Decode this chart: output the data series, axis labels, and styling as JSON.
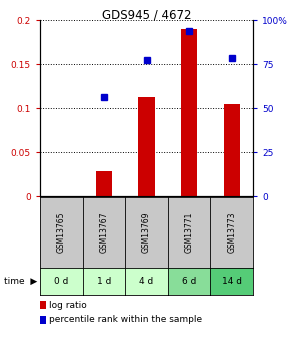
{
  "title": "GDS945 / 4672",
  "categories": [
    "GSM13765",
    "GSM13767",
    "GSM13769",
    "GSM13771",
    "GSM13773"
  ],
  "time_labels": [
    "0 d",
    "1 d",
    "4 d",
    "6 d",
    "14 d"
  ],
  "log_ratio": [
    0.0,
    0.028,
    0.113,
    0.19,
    0.105
  ],
  "percentile_rank": [
    0.0,
    0.565,
    0.775,
    0.935,
    0.785
  ],
  "bar_color": "#cc0000",
  "dot_color": "#0000cc",
  "ylim_left": [
    0,
    0.2
  ],
  "ylim_right": [
    0.0,
    1.0
  ],
  "yticks_left": [
    0,
    0.05,
    0.1,
    0.15,
    0.2
  ],
  "ytick_labels_left": [
    "0",
    "0.05",
    "0.1",
    "0.15",
    "0.2"
  ],
  "yticks_right": [
    0.0,
    0.25,
    0.5,
    0.75,
    1.0
  ],
  "ytick_labels_right": [
    "0",
    "25",
    "50",
    "75",
    "100%"
  ],
  "gsm_bg": "#c8c8c8",
  "time_row_colors": [
    "#ccffcc",
    "#ccffcc",
    "#ccffcc",
    "#88dd99",
    "#55cc77"
  ],
  "background_color": "#ffffff"
}
